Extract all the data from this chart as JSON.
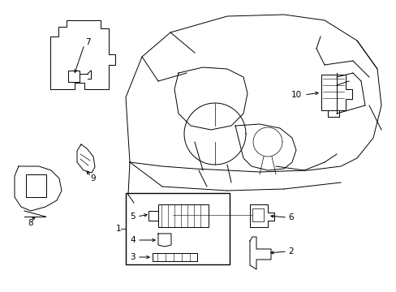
{
  "background_color": "#ffffff",
  "line_color": "#000000",
  "fig_width": 4.89,
  "fig_height": 3.6,
  "dpi": 100,
  "lw": 0.7
}
